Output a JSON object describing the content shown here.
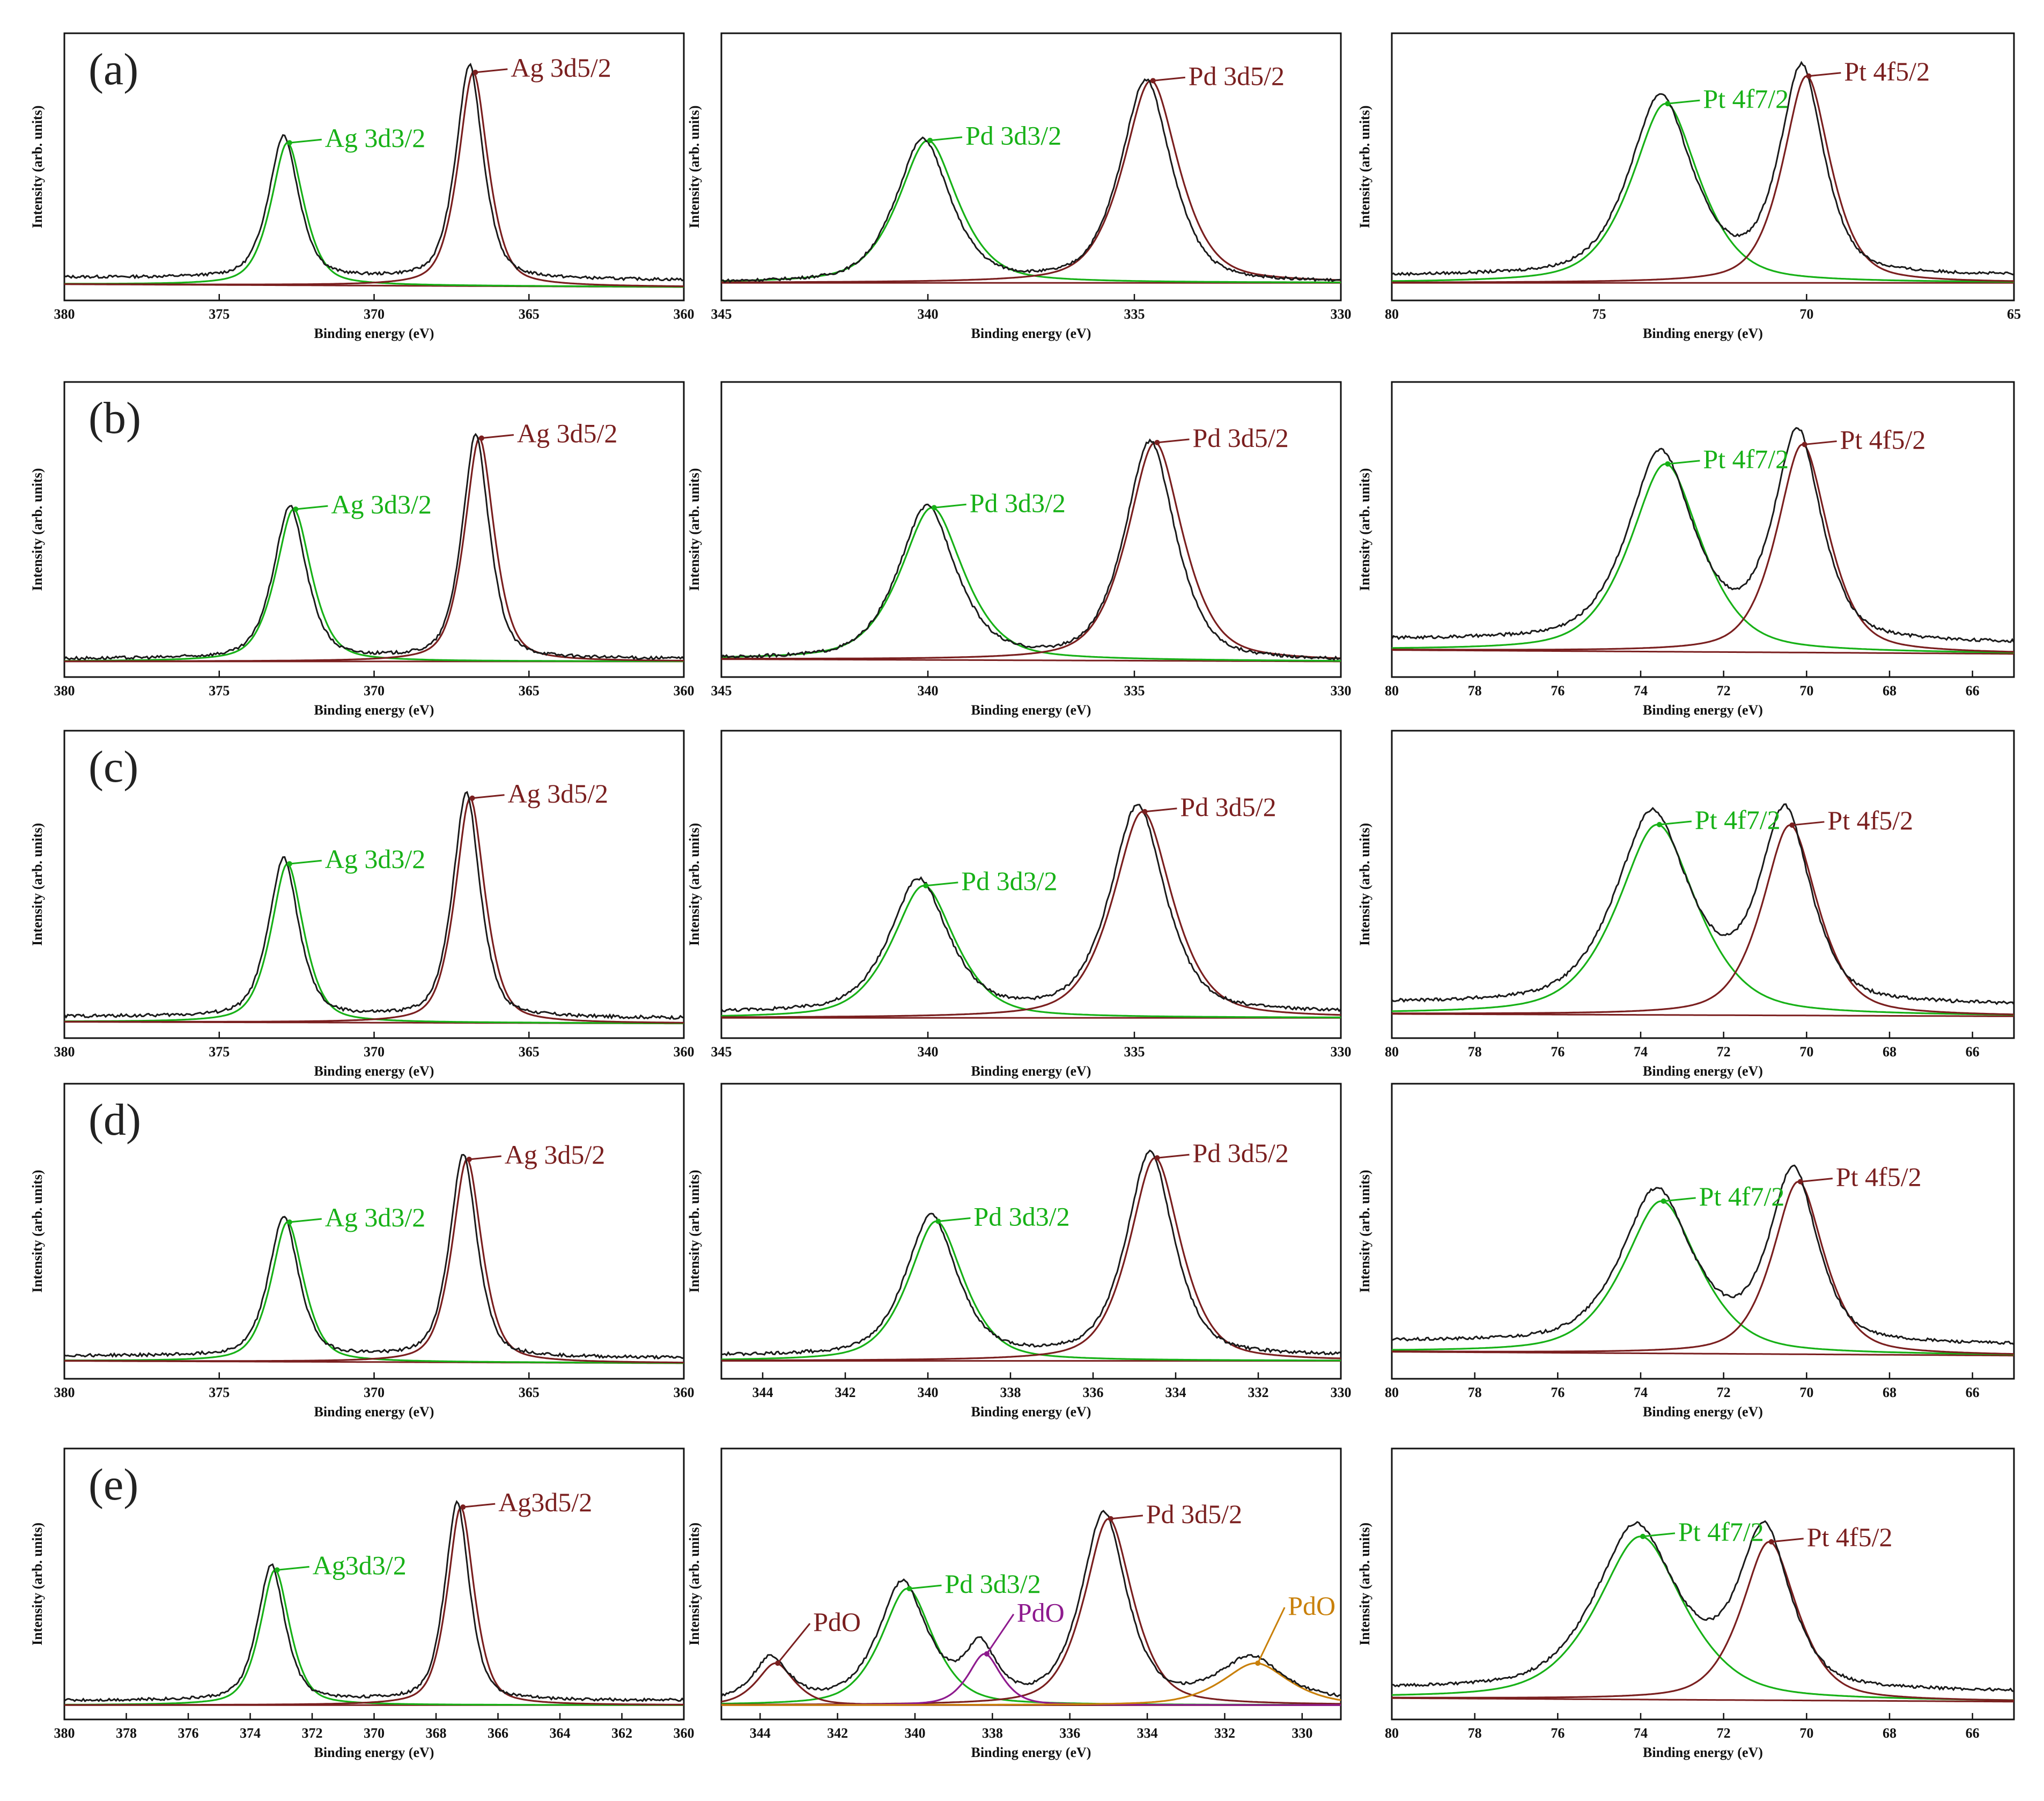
{
  "figure": {
    "colors": {
      "experimental": "#1a1a1a",
      "fit_green": "#17b117",
      "fit_red": "#7a1f1f",
      "baseline_green": "#17b117",
      "baseline_red": "#7a1f1f",
      "pdo_purple": "#8e1a8e",
      "pdo_orange": "#c9800a",
      "label_green": "#17b117",
      "label_red": "#7a1f1f"
    },
    "rows": [
      "(a)",
      "(b)",
      "(c)",
      "(d)",
      "(e)"
    ]
  },
  "chart_data": [
    {
      "id": "a-ag",
      "type": "line",
      "panel_letter": "(a)",
      "element": "Ag",
      "xlabel": "Binding energy (eV)",
      "ylabel": "Intensity (arb. units)",
      "xlim": [
        380,
        360
      ],
      "xticks": [
        380,
        375,
        370,
        365,
        360
      ],
      "peaks": [
        {
          "label": "Ag 3d3/2",
          "center": 372.8,
          "height": 0.62,
          "width": 0.55,
          "color": "green"
        },
        {
          "label": "Ag 3d5/2",
          "center": 366.8,
          "height": 0.93,
          "width": 0.5,
          "color": "red"
        }
      ],
      "baseline": [
        0.08,
        0.04
      ],
      "raw_offset": 0.03
    },
    {
      "id": "a-pd",
      "type": "line",
      "element": "Pd",
      "xlabel": "Binding energy (eV)",
      "ylabel": "Intensity (arb. units)",
      "xlim": [
        345,
        330
      ],
      "xticks": [
        345,
        340,
        335,
        330
      ],
      "peaks": [
        {
          "label": "Pd 3d3/2",
          "center": 340.0,
          "height": 0.62,
          "width": 0.75,
          "color": "green"
        },
        {
          "label": "Pd 3d5/2",
          "center": 334.6,
          "height": 0.88,
          "width": 0.7,
          "color": "red"
        }
      ],
      "baseline": [
        0.1,
        0.1
      ],
      "raw_offset": 0.0
    },
    {
      "id": "a-pt",
      "type": "line",
      "element": "Pt",
      "xlabel": "Binding energy (eV)",
      "ylabel": "Intensity (arb. units)",
      "xlim": [
        80,
        65
      ],
      "xticks": [
        80,
        75,
        70,
        65
      ],
      "peaks": [
        {
          "label": "Pt 4f7/2",
          "center": 73.4,
          "height": 0.78,
          "width": 0.85,
          "color": "green"
        },
        {
          "label": "Pt 4f5/2",
          "center": 70.0,
          "height": 0.9,
          "width": 0.6,
          "color": "red"
        }
      ],
      "baseline": [
        0.1,
        0.1
      ],
      "raw_offset": 0.03
    },
    {
      "id": "b-ag",
      "type": "line",
      "panel_letter": "(b)",
      "element": "Ag",
      "xlabel": "Binding energy (eV)",
      "ylabel": "Intensity (arb. units)",
      "xlim": [
        380,
        360
      ],
      "xticks": [
        380,
        375,
        370,
        365,
        360
      ],
      "peaks": [
        {
          "label": "Ag 3d3/2",
          "center": 372.6,
          "height": 0.6,
          "width": 0.6,
          "color": "green"
        },
        {
          "label": "Ag 3d5/2",
          "center": 366.6,
          "height": 0.88,
          "width": 0.5,
          "color": "red"
        }
      ],
      "baseline": [
        0.05,
        0.05
      ],
      "raw_offset": 0.01
    },
    {
      "id": "b-pd",
      "type": "line",
      "element": "Pd",
      "xlabel": "Binding energy (eV)",
      "ylabel": "Intensity (arb. units)",
      "xlim": [
        345,
        330
      ],
      "xticks": [
        345,
        340,
        335,
        330
      ],
      "peaks": [
        {
          "label": "Pd 3d3/2",
          "center": 339.9,
          "height": 0.6,
          "width": 0.8,
          "color": "green"
        },
        {
          "label": "Pd 3d5/2",
          "center": 334.5,
          "height": 0.86,
          "width": 0.7,
          "color": "red"
        }
      ],
      "baseline": [
        0.08,
        0.05
      ],
      "raw_offset": 0.0
    },
    {
      "id": "b-pt",
      "type": "line",
      "element": "Pt",
      "xlabel": "Binding energy (eV)",
      "ylabel": "Intensity (arb. units)",
      "xlim": [
        80,
        65
      ],
      "xticks": [
        80,
        78,
        76,
        74,
        72,
        70,
        68,
        66
      ],
      "peaks": [
        {
          "label": "Pt 4f7/2",
          "center": 73.4,
          "height": 0.74,
          "width": 0.9,
          "color": "green"
        },
        {
          "label": "Pt 4f5/2",
          "center": 70.1,
          "height": 0.82,
          "width": 0.65,
          "color": "red"
        }
      ],
      "baseline": [
        0.2,
        0.15
      ],
      "raw_offset": 0.04
    },
    {
      "id": "c-ag",
      "type": "line",
      "panel_letter": "(c)",
      "element": "Ag",
      "xlabel": "Binding energy (eV)",
      "ylabel": "Intensity (arb. units)",
      "xlim": [
        380,
        360
      ],
      "xticks": [
        380,
        375,
        370,
        365,
        360
      ],
      "peaks": [
        {
          "label": "Ag 3d3/2",
          "center": 372.8,
          "height": 0.6,
          "width": 0.55,
          "color": "green"
        },
        {
          "label": "Ag 3d5/2",
          "center": 366.9,
          "height": 0.85,
          "width": 0.5,
          "color": "red"
        }
      ],
      "baseline": [
        0.05,
        0.03
      ],
      "raw_offset": 0.02
    },
    {
      "id": "c-pd",
      "type": "line",
      "element": "Pd",
      "xlabel": "Binding energy (eV)",
      "ylabel": "Intensity (arb. units)",
      "xlim": [
        345,
        330
      ],
      "xticks": [
        345,
        340,
        335,
        330
      ],
      "peaks": [
        {
          "label": "Pd 3d3/2",
          "center": 340.1,
          "height": 0.5,
          "width": 0.8,
          "color": "green"
        },
        {
          "label": "Pd 3d5/2",
          "center": 334.8,
          "height": 0.78,
          "width": 0.75,
          "color": "red"
        }
      ],
      "baseline": [
        0.1,
        0.1
      ],
      "raw_offset": 0.02
    },
    {
      "id": "c-pt",
      "type": "line",
      "element": "Pt",
      "xlabel": "Binding energy (eV)",
      "ylabel": "Intensity (arb. units)",
      "xlim": [
        80,
        65
      ],
      "xticks": [
        80,
        78,
        76,
        74,
        72,
        70,
        68,
        66
      ],
      "peaks": [
        {
          "label": "Pt 4f7/2",
          "center": 73.6,
          "height": 0.72,
          "width": 1.0,
          "color": "green"
        },
        {
          "label": "Pt 4f5/2",
          "center": 70.4,
          "height": 0.72,
          "width": 0.7,
          "color": "red"
        }
      ],
      "baseline": [
        0.15,
        0.12
      ],
      "raw_offset": 0.04
    },
    {
      "id": "d-ag",
      "type": "line",
      "panel_letter": "(d)",
      "element": "Ag",
      "xlabel": "Binding energy (eV)",
      "ylabel": "Intensity (arb. units)",
      "xlim": [
        380,
        360
      ],
      "xticks": [
        380,
        375,
        370,
        365,
        360
      ],
      "peaks": [
        {
          "label": "Ag 3d3/2",
          "center": 372.8,
          "height": 0.55,
          "width": 0.55,
          "color": "green"
        },
        {
          "label": "Ag 3d5/2",
          "center": 367.0,
          "height": 0.8,
          "width": 0.5,
          "color": "red"
        }
      ],
      "baseline": [
        0.08,
        0.05
      ],
      "raw_offset": 0.02
    },
    {
      "id": "d-pd",
      "type": "line",
      "element": "Pd",
      "xlabel": "Binding energy (eV)",
      "ylabel": "Intensity (arb. units)",
      "xlim": [
        345,
        330
      ],
      "xticks": [
        344,
        342,
        340,
        338,
        336,
        334,
        332,
        330
      ],
      "peaks": [
        {
          "label": "Pd 3d3/2",
          "center": 339.8,
          "height": 0.55,
          "width": 0.7,
          "color": "green"
        },
        {
          "label": "Pd 3d5/2",
          "center": 334.5,
          "height": 0.8,
          "width": 0.65,
          "color": "red"
        }
      ],
      "baseline": [
        0.08,
        0.08
      ],
      "raw_offset": 0.02
    },
    {
      "id": "d-pt",
      "type": "line",
      "element": "Pt",
      "xlabel": "Binding energy (eV)",
      "ylabel": "Intensity (arb. units)",
      "xlim": [
        80,
        65
      ],
      "xticks": [
        80,
        78,
        76,
        74,
        72,
        70,
        68,
        66
      ],
      "peaks": [
        {
          "label": "Pt 4f7/2",
          "center": 73.5,
          "height": 0.6,
          "width": 0.95,
          "color": "green"
        },
        {
          "label": "Pt 4f5/2",
          "center": 70.2,
          "height": 0.68,
          "width": 0.65,
          "color": "red"
        }
      ],
      "baseline": [
        0.2,
        0.15
      ],
      "raw_offset": 0.04
    },
    {
      "id": "e-ag",
      "type": "line",
      "panel_letter": "(e)",
      "element": "Ag",
      "xlabel": "Binding energy (eV)",
      "ylabel": "Intensity (arb. units)",
      "xlim": [
        380,
        360
      ],
      "xticks": [
        380,
        378,
        376,
        374,
        372,
        370,
        368,
        366,
        364,
        362,
        360
      ],
      "peaks": [
        {
          "label": "Ag3d3/2",
          "center": 373.2,
          "height": 0.58,
          "width": 0.5,
          "color": "green"
        },
        {
          "label": "Ag3d5/2",
          "center": 367.2,
          "height": 0.85,
          "width": 0.45,
          "color": "red"
        }
      ],
      "baseline": [
        0.05,
        0.05
      ],
      "raw_offset": 0.02
    },
    {
      "id": "e-pd",
      "type": "line",
      "element": "Pd",
      "xlabel": "Binding energy (eV)",
      "ylabel": "Intensity (arb. units)",
      "xlim": [
        345,
        329
      ],
      "xticks": [
        344,
        342,
        340,
        338,
        336,
        334,
        332,
        330
      ],
      "peaks": [
        {
          "label": "Pd 3d3/2",
          "center": 340.2,
          "height": 0.5,
          "width": 0.7,
          "color": "green"
        },
        {
          "label": "Pd 3d5/2",
          "center": 335.0,
          "height": 0.8,
          "width": 0.65,
          "color": "red"
        },
        {
          "label": "PdO",
          "center": 343.6,
          "height": 0.18,
          "width": 0.5,
          "color": "red_minor"
        },
        {
          "label": "PdO",
          "center": 338.2,
          "height": 0.22,
          "width": 0.45,
          "color": "purple"
        },
        {
          "label": "PdO",
          "center": 331.2,
          "height": 0.18,
          "width": 0.9,
          "color": "orange"
        }
      ],
      "baseline": [
        0.05,
        0.05
      ],
      "raw_offset": 0.02
    },
    {
      "id": "e-pt",
      "type": "line",
      "element": "Pt",
      "xlabel": "Binding energy (eV)",
      "ylabel": "Intensity (arb. units)",
      "xlim": [
        80,
        65
      ],
      "xticks": [
        80,
        78,
        76,
        74,
        72,
        70,
        68,
        66
      ],
      "peaks": [
        {
          "label": "Pt 4f7/2",
          "center": 74.0,
          "height": 0.7,
          "width": 1.1,
          "color": "green"
        },
        {
          "label": "Pt 4f5/2",
          "center": 70.9,
          "height": 0.68,
          "width": 0.7,
          "color": "red"
        }
      ],
      "baseline": [
        0.15,
        0.1
      ],
      "raw_offset": 0.04
    }
  ]
}
